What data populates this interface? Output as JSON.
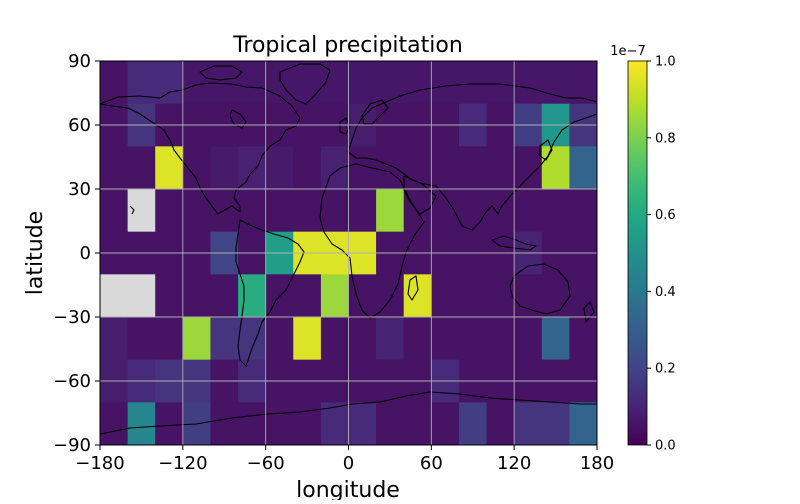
{
  "chart_data": {
    "type": "heatmap",
    "title": "Tropical precipitation",
    "xlabel": "longitude",
    "ylabel": "latitude",
    "xlim": [
      -180,
      180
    ],
    "ylim": [
      -90,
      90
    ],
    "x_ticks": [
      -180,
      -120,
      -60,
      0,
      60,
      120,
      180
    ],
    "y_ticks": [
      -90,
      -60,
      -30,
      0,
      30,
      60,
      90
    ],
    "x_tick_labels": [
      "−180",
      "−120",
      "−60",
      "0",
      "60",
      "120",
      "180"
    ],
    "y_tick_labels": [
      "−90",
      "−60",
      "−30",
      "0",
      "30",
      "60",
      "90"
    ],
    "grid": true,
    "colormap": "viridis",
    "missing_color": "#d9d9d9",
    "coastline_color": "#000000",
    "cell_size_deg": [
      20,
      20
    ],
    "colorbar": {
      "min": 0.0,
      "max": 1.0,
      "exponent_label": "1e−7",
      "ticks": [
        0.0,
        0.2,
        0.4,
        0.6,
        0.8,
        1.0
      ],
      "tick_labels": [
        "0.0",
        "0.2",
        "0.4",
        "0.6",
        "0.8",
        "1.0"
      ]
    },
    "x_cell_centers": [
      -170,
      -150,
      -130,
      -110,
      -90,
      -70,
      -50,
      -30,
      -10,
      10,
      30,
      50,
      70,
      90,
      110,
      130,
      150,
      170
    ],
    "y_cell_centers": [
      80,
      60,
      40,
      20,
      0,
      -20,
      -40,
      -60,
      -80
    ],
    "values": [
      [
        0.05,
        0.12,
        0.12,
        0.06,
        0.06,
        0.06,
        0.06,
        0.06,
        0.06,
        0.06,
        0.06,
        0.06,
        0.06,
        0.06,
        0.06,
        0.06,
        0.06,
        0.06
      ],
      [
        0.05,
        0.15,
        0.05,
        0.05,
        0.05,
        0.05,
        0.05,
        0.05,
        0.05,
        0.08,
        0.05,
        0.05,
        0.05,
        0.12,
        0.05,
        0.18,
        0.52,
        0.15
      ],
      [
        0.05,
        0.05,
        0.95,
        0.05,
        0.07,
        0.09,
        0.07,
        0.05,
        0.09,
        0.05,
        0.05,
        0.05,
        0.05,
        0.05,
        0.05,
        0.05,
        0.88,
        0.32
      ],
      [
        0.05,
        null,
        0.05,
        0.05,
        0.05,
        0.05,
        0.05,
        0.05,
        0.05,
        0.05,
        0.85,
        0.05,
        0.05,
        0.05,
        0.05,
        0.05,
        0.05,
        0.05
      ],
      [
        0.05,
        0.05,
        0.05,
        0.05,
        0.2,
        0.05,
        0.55,
        0.95,
        0.95,
        0.95,
        0.05,
        0.05,
        0.05,
        0.05,
        0.05,
        0.1,
        0.05,
        0.05
      ],
      [
        null,
        null,
        0.05,
        0.05,
        0.05,
        0.62,
        0.05,
        0.05,
        0.85,
        0.05,
        0.05,
        0.95,
        0.05,
        0.05,
        0.05,
        0.05,
        0.05,
        0.05
      ],
      [
        0.08,
        0.05,
        0.05,
        0.85,
        0.15,
        0.15,
        0.05,
        0.95,
        0.05,
        0.05,
        0.1,
        0.05,
        0.05,
        0.05,
        0.05,
        0.05,
        0.32,
        0.05
      ],
      [
        0.08,
        0.12,
        0.15,
        0.15,
        0.05,
        0.12,
        0.05,
        0.05,
        0.05,
        0.05,
        0.05,
        0.05,
        0.12,
        0.05,
        0.05,
        0.05,
        0.05,
        0.05
      ],
      [
        0.05,
        0.45,
        0.05,
        0.18,
        0.05,
        0.05,
        0.05,
        0.05,
        0.12,
        0.12,
        0.05,
        0.05,
        0.05,
        0.18,
        0.05,
        0.15,
        0.15,
        0.32
      ]
    ]
  }
}
